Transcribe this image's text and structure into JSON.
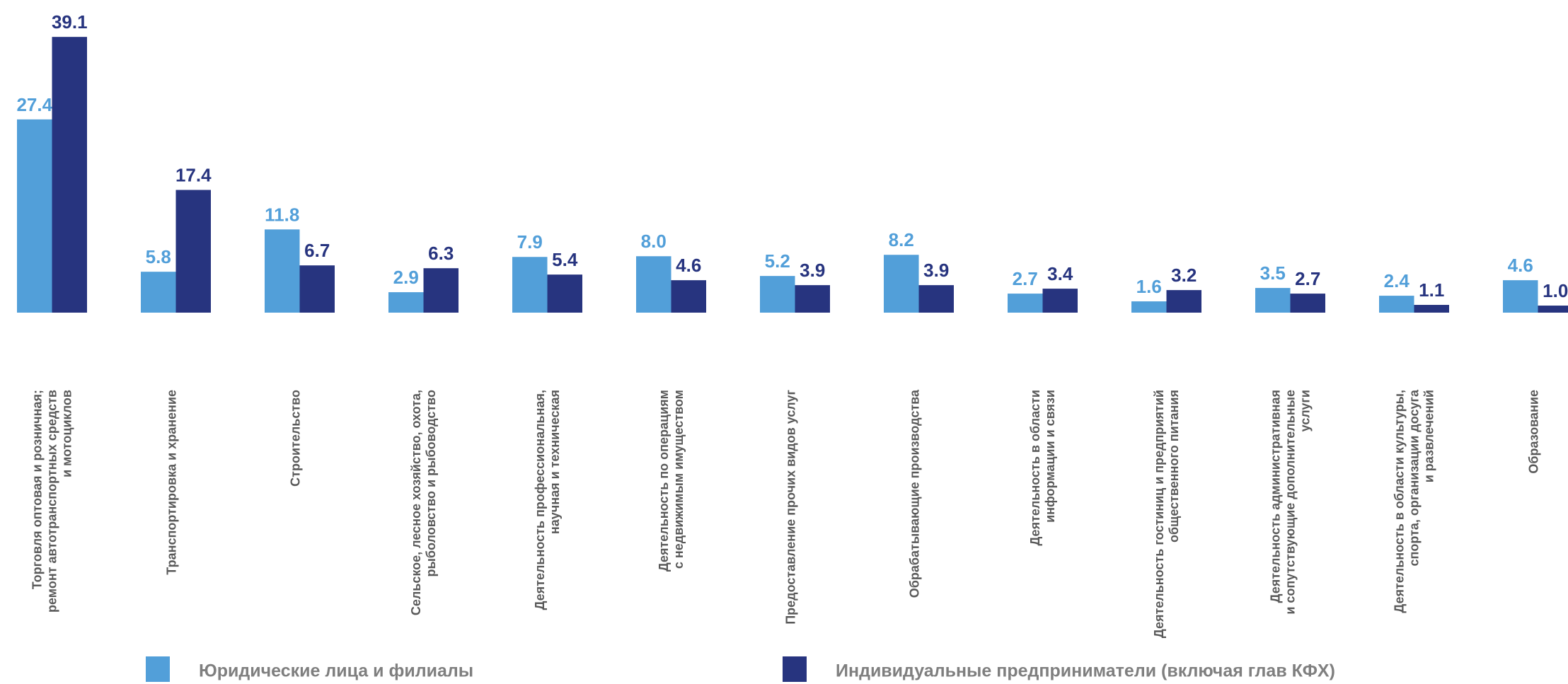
{
  "chart_data": {
    "type": "bar",
    "categories": [
      "Торговля оптовая и розничная;\nремонт автотранспортных средств\nи мотоциклов",
      "Транспортировка и хранение",
      "Строительство",
      "Сельское, лесное хозяйство, охота,\nрыболовство и рыбоводство",
      "Деятельность профессиональная,\nнаучная и техническая",
      "Деятельность по операциям\nс недвижимым имуществом",
      "Предоставление прочих видов услуг",
      "Обрабатывающие производства",
      "Деятельность  в области\nинформации и связи",
      "Деятельность гостиниц и предприятий\nобщественного питания",
      "Деятельность административная\nи сопутствующие дополнительные\nуслуги",
      "Деятельность в области культуры,\nспорта, организации досуга\nи развлечений",
      "Образование"
    ],
    "series": [
      {
        "name": "Юридические лица и филиалы",
        "color": "#529fd9",
        "values": [
          27.4,
          5.8,
          11.8,
          2.9,
          7.9,
          8.0,
          5.2,
          8.2,
          2.7,
          1.6,
          3.5,
          2.4,
          4.6
        ],
        "value_labels": [
          "27.4",
          "5.8",
          "11.8",
          "2.9",
          "7.9",
          "8.0",
          "5.2",
          "8.2",
          "2.7",
          "1.6",
          "3.5",
          "2.4",
          "4.6"
        ]
      },
      {
        "name": "Индивидуальные предприниматели (включая глав КФХ)",
        "color": "#27347f",
        "values": [
          39.1,
          17.4,
          6.7,
          6.3,
          5.4,
          4.6,
          3.9,
          3.9,
          3.4,
          3.2,
          2.7,
          1.1,
          1.0
        ],
        "value_labels": [
          "39.1",
          "17.4",
          "6.7",
          "6.3",
          "5.4",
          "4.6",
          "3.9",
          "3.9",
          "3.4",
          "3.2",
          "2.7",
          "1.1",
          "1.0"
        ]
      }
    ]
  }
}
